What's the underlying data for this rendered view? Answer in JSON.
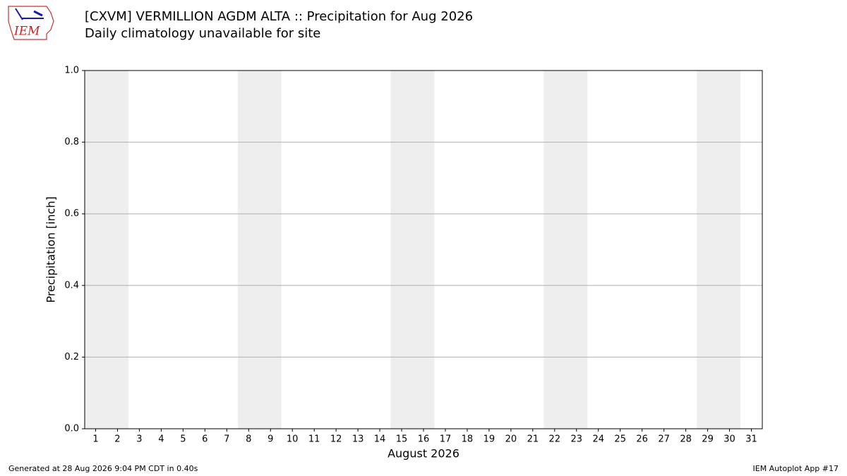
{
  "chart_data": {
    "type": "bar",
    "logo": "IEM",
    "title": "[CXVM] VERMILLION AGDM  ALTA :: Precipitation for Aug 2026",
    "subtitle": "Daily climatology unavailable for site",
    "ylabel": "Precipitation [inch]",
    "xlabel": "August 2026",
    "xlim": [
      0.5,
      31.5
    ],
    "xticks": [
      1,
      2,
      3,
      4,
      5,
      6,
      7,
      8,
      9,
      10,
      11,
      12,
      13,
      14,
      15,
      16,
      17,
      18,
      19,
      20,
      21,
      22,
      23,
      24,
      25,
      26,
      27,
      28,
      29,
      30,
      31
    ],
    "shaded_ranges": [
      [
        0.5,
        2.5
      ],
      [
        7.5,
        9.5
      ],
      [
        14.5,
        16.5
      ],
      [
        21.5,
        23.5
      ],
      [
        28.5,
        30.5
      ]
    ],
    "shade_color": "#eeeeee",
    "ylim": [
      0,
      1
    ],
    "yticks": [
      {
        "value": 0,
        "label": "0.0"
      },
      0.2,
      0.4,
      0.6,
      0.8,
      {
        "value": 1,
        "label": "1.0"
      }
    ],
    "grid": true,
    "footer_left": "Generated at 28 Aug 2026 9:04 PM CDT in 0.40s",
    "footer_right": "IEM Autoplot App #17"
  }
}
